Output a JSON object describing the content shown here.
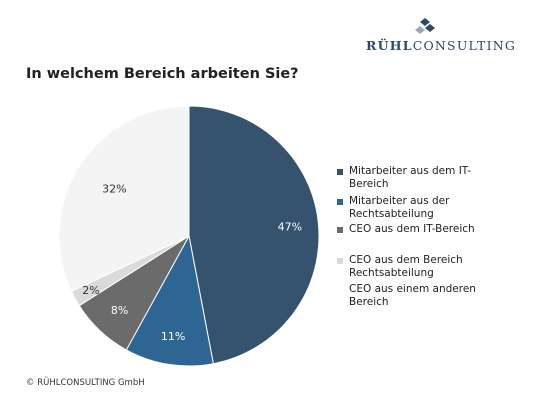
{
  "logo": {
    "text_bold": "RÜHL",
    "text_rest": "CONSULTING"
  },
  "footer": "© RÜHLCONSULTING GmbH",
  "chart_data": {
    "type": "pie",
    "title": "In welchem Bereich arbeiten Sie?",
    "legend_placement": "right",
    "slices": [
      {
        "label": "Mitarbeiter aus dem IT-Bereich",
        "value": 47,
        "display": "47%",
        "color": "#35536e",
        "label_color": "#ffffff"
      },
      {
        "label": "Mitarbeiter aus der Rechtsabteilung",
        "value": 11,
        "display": "11%",
        "color": "#2f6593",
        "label_color": "#ffffff"
      },
      {
        "label": "CEO aus dem IT-Bereich",
        "value": 8,
        "display": "8%",
        "color": "#6b6b6b",
        "label_color": "#ffffff"
      },
      {
        "label": "CEO aus dem Bereich Rechtsabteilung",
        "value": 2,
        "display": "2%",
        "color": "#dadada",
        "label_color": "#333333"
      },
      {
        "label": "CEO aus einem anderen Bereich",
        "value": 32,
        "display": "32%",
        "color": "#f4f4f5",
        "label_color": "#333333"
      }
    ],
    "legend_lines": [
      [
        "Mitarbeiter aus dem IT-",
        "Bereich"
      ],
      [
        "Mitarbeiter aus der",
        "Rechtsabteilung"
      ],
      [
        "CEO aus dem IT-Bereich"
      ],
      [
        "CEO aus dem Bereich",
        "Rechtsabteilung"
      ],
      [
        "CEO aus einem anderen",
        "Bereich"
      ]
    ]
  }
}
